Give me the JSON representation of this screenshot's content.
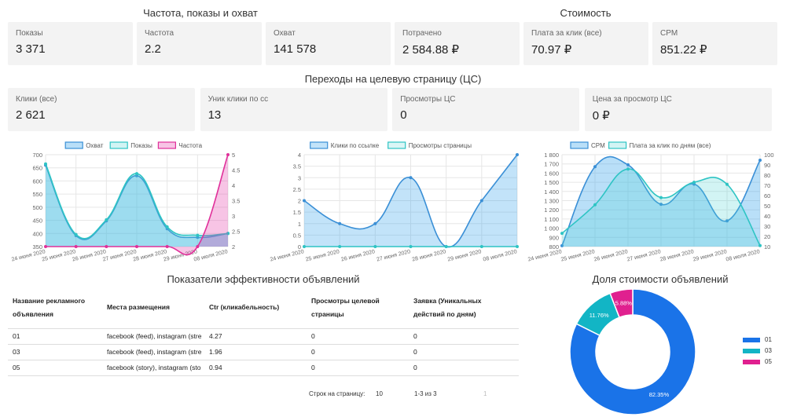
{
  "sections": {
    "freq_title": "Частота, показы и охват",
    "cost_title": "Стоимость",
    "landing_title": "Переходы на целевую страницу (ЦС)",
    "table_title": "Показатели эффективности объявлений",
    "share_title": "Доля стоимости объявлений"
  },
  "cards_row1": [
    {
      "label": "Показы",
      "value": "3 371"
    },
    {
      "label": "Частота",
      "value": "2.2"
    },
    {
      "label": "Охват",
      "value": "141 578"
    },
    {
      "label": "Потрачено",
      "value": "2 584.88 ₽"
    },
    {
      "label": "Плата за клик (все)",
      "value": "70.97 ₽"
    },
    {
      "label": "CPM",
      "value": "851.22 ₽"
    }
  ],
  "cards_row2": [
    {
      "label": "Клики (все)",
      "value": "2 621"
    },
    {
      "label": "Уник клики по сс",
      "value": "13"
    },
    {
      "label": "Просмотры ЦС",
      "value": "0"
    },
    {
      "label": "Цена за просмотр ЦС",
      "value": "0 ₽"
    }
  ],
  "chart_data": [
    {
      "type": "area",
      "categories": [
        "24 июня 2020",
        "25 июня 2020",
        "26 июня 2020",
        "27 июня 2020",
        "28 июня 2020",
        "29 июня 2020",
        "08 июля 2020"
      ],
      "y_left": {
        "min": 350,
        "max": 700,
        "ticks": [
          350,
          400,
          450,
          500,
          550,
          600,
          650,
          700
        ]
      },
      "y_right": {
        "min": 2,
        "max": 5,
        "ticks": [
          2,
          2.5,
          3,
          3.5,
          4,
          4.5,
          5
        ],
        "tick_labels": [
          "2",
          "2.5",
          "3",
          "3.5",
          "4",
          "4.5",
          "5"
        ]
      },
      "series": [
        {
          "name": "Охват",
          "axis": "left",
          "color": "#3a8fd6",
          "fill": "rgba(54,162,235,0.35)",
          "values": [
            660,
            392,
            448,
            620,
            418,
            385,
            400
          ]
        },
        {
          "name": "Показы",
          "axis": "left",
          "color": "#2ec4c4",
          "fill": "rgba(75,210,210,0.25)",
          "values": [
            665,
            396,
            452,
            628,
            425,
            393,
            400
          ]
        },
        {
          "name": "Частота",
          "axis": "right",
          "color": "#e0309a",
          "fill": "rgba(230,60,170,0.3)",
          "values": [
            2,
            2,
            2,
            2,
            2,
            2,
            5
          ]
        }
      ]
    },
    {
      "type": "area",
      "categories": [
        "24 июня 2020",
        "25 июня 2020",
        "26 июня 2020",
        "27 июня 2020",
        "28 июня 2020",
        "29 июня 2020",
        "08 июля 2020"
      ],
      "y_left": {
        "min": 0,
        "max": 4,
        "ticks": [
          0,
          0.5,
          1,
          1.5,
          2,
          2.5,
          3,
          3.5,
          4
        ],
        "tick_labels": [
          "0",
          "0.5",
          "1",
          "1.5",
          "2",
          "2.5",
          "3",
          "3.5",
          "4"
        ]
      },
      "series": [
        {
          "name": "Клики по ссылке",
          "axis": "left",
          "color": "#3a8fd6",
          "fill": "rgba(54,162,235,0.3)",
          "values": [
            2,
            1,
            1,
            3,
            0,
            2,
            4
          ]
        },
        {
          "name": "Просмотры страницы",
          "axis": "left",
          "color": "#2ec4c4",
          "fill": "rgba(75,210,210,0.2)",
          "values": [
            0,
            0,
            0,
            0,
            0,
            0,
            0
          ]
        }
      ]
    },
    {
      "type": "area",
      "categories": [
        "24 июня 2020",
        "25 июня 2020",
        "26 июня 2020",
        "27 июня 2020",
        "28 июня 2020",
        "29 июня 2020",
        "08 июля 2020"
      ],
      "y_left": {
        "min": 800,
        "max": 1800,
        "ticks": [
          800,
          900,
          1000,
          1100,
          1200,
          1300,
          1400,
          1500,
          1600,
          1700,
          1800
        ],
        "tick_labels": [
          "800",
          "900",
          "1 000",
          "1 100",
          "1 200",
          "1 300",
          "1 400",
          "1 500",
          "1 600",
          "1 700",
          "1 800"
        ]
      },
      "y_right": {
        "min": 10,
        "max": 100,
        "ticks": [
          10,
          20,
          30,
          40,
          50,
          60,
          70,
          80,
          90,
          100
        ]
      },
      "series": [
        {
          "name": "CPM",
          "axis": "left",
          "color": "#3a8fd6",
          "fill": "rgba(54,162,235,0.35)",
          "values": [
            810,
            1670,
            1690,
            1260,
            1480,
            1080,
            1740
          ]
        },
        {
          "name": "Плата за клик по дням (все)",
          "axis": "right",
          "color": "#2ec4c4",
          "fill": "rgba(75,210,210,0.25)",
          "values": [
            23,
            51,
            86,
            58,
            73,
            71,
            11
          ]
        }
      ]
    },
    {
      "type": "pie",
      "title": "Доля стоимости объявлений",
      "labels": [
        "01",
        "03",
        "05"
      ],
      "values": [
        82.35,
        11.76,
        5.88
      ],
      "data_labels": [
        "82.35%",
        "11.76%",
        "5.88%"
      ],
      "colors": [
        "#1a73e8",
        "#12b5c5",
        "#e0208f"
      ]
    }
  ],
  "table": {
    "headers": [
      "Название рекламного объявления",
      "Места размещения",
      "Ctr (кликабельность)",
      "Просмотры целевой страницы",
      "Заявка (Уникальных действий по дням)"
    ],
    "rows": [
      [
        "01",
        "facebook (feed), instagram (stre",
        "4.27",
        "0",
        "0"
      ],
      [
        "03",
        "facebook (feed), instagram (stre",
        "1.96",
        "0",
        "0"
      ],
      [
        "05",
        "facebook (story), instagram (sto",
        "0.94",
        "0",
        "0"
      ]
    ]
  },
  "pager": {
    "rows_label": "Строк на страницу:",
    "rows_value": "10",
    "range": "1-3 из 3",
    "page": "1"
  }
}
